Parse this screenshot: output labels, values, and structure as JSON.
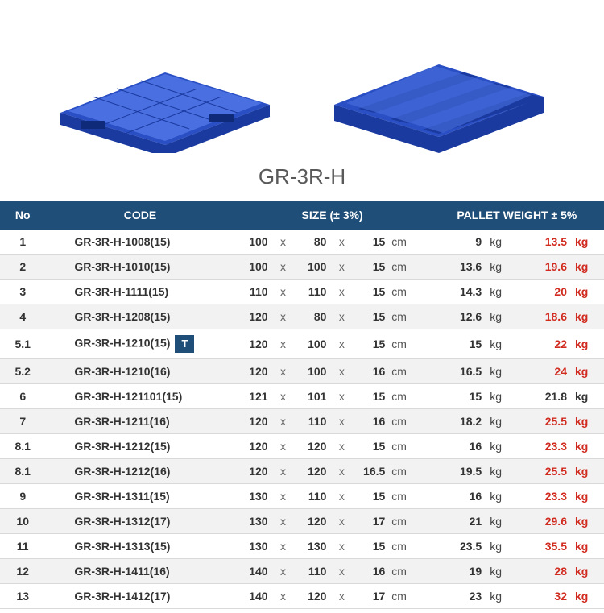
{
  "model_label": "GR-3R-H",
  "colors": {
    "header_bg": "#1f4e79",
    "header_text": "#ffffff",
    "row_alt_bg": "#f2f2f2",
    "text": "#333333",
    "red": "#d12a1f",
    "pallet_blue": "#2a4fc4",
    "pallet_blue_dark": "#1a3aa0",
    "pallet_blue_light": "#4a6fe0"
  },
  "headers": {
    "no": "No",
    "code": "CODE",
    "size": "SIZE  (± 3%)",
    "weight": "PALLET WEIGHT ± 5%"
  },
  "size_separator": "x",
  "size_unit": "cm",
  "weight_unit": "kg",
  "rows": [
    {
      "no": "1",
      "code": "GR-3R-H-1008(15)",
      "badge": "",
      "d1": "100",
      "d2": "80",
      "d3": "15",
      "w1": "9",
      "w2": "13.5",
      "w2_red": true
    },
    {
      "no": "2",
      "code": "GR-3R-H-1010(15)",
      "badge": "",
      "d1": "100",
      "d2": "100",
      "d3": "15",
      "w1": "13.6",
      "w2": "19.6",
      "w2_red": true
    },
    {
      "no": "3",
      "code": "GR-3R-H-1111(15)",
      "badge": "",
      "d1": "110",
      "d2": "110",
      "d3": "15",
      "w1": "14.3",
      "w2": "20",
      "w2_red": true
    },
    {
      "no": "4",
      "code": "GR-3R-H-1208(15)",
      "badge": "",
      "d1": "120",
      "d2": "80",
      "d3": "15",
      "w1": "12.6",
      "w2": "18.6",
      "w2_red": true
    },
    {
      "no": "5.1",
      "code": "GR-3R-H-1210(15)",
      "badge": "T",
      "d1": "120",
      "d2": "100",
      "d3": "15",
      "w1": "15",
      "w2": "22",
      "w2_red": true
    },
    {
      "no": "5.2",
      "code": "GR-3R-H-1210(16)",
      "badge": "",
      "d1": "120",
      "d2": "100",
      "d3": "16",
      "w1": "16.5",
      "w2": "24",
      "w2_red": true
    },
    {
      "no": "6",
      "code": "GR-3R-H-121101(15)",
      "badge": "",
      "d1": "121",
      "d2": "101",
      "d3": "15",
      "w1": "15",
      "w2": "21.8",
      "w2_red": false
    },
    {
      "no": "7",
      "code": "GR-3R-H-1211(16)",
      "badge": "",
      "d1": "120",
      "d2": "110",
      "d3": "16",
      "w1": "18.2",
      "w2": "25.5",
      "w2_red": true
    },
    {
      "no": "8.1",
      "code": "GR-3R-H-1212(15)",
      "badge": "",
      "d1": "120",
      "d2": "120",
      "d3": "15",
      "w1": "16",
      "w2": "23.3",
      "w2_red": true
    },
    {
      "no": "8.1",
      "code": "GR-3R-H-1212(16)",
      "badge": "",
      "d1": "120",
      "d2": "120",
      "d3": "16.5",
      "w1": "19.5",
      "w2": "25.5",
      "w2_red": true
    },
    {
      "no": "9",
      "code": "GR-3R-H-1311(15)",
      "badge": "",
      "d1": "130",
      "d2": "110",
      "d3": "15",
      "w1": "16",
      "w2": "23.3",
      "w2_red": true
    },
    {
      "no": "10",
      "code": "GR-3R-H-1312(17)",
      "badge": "",
      "d1": "130",
      "d2": "120",
      "d3": "17",
      "w1": "21",
      "w2": "29.6",
      "w2_red": true
    },
    {
      "no": "11",
      "code": "GR-3R-H-1313(15)",
      "badge": "",
      "d1": "130",
      "d2": "130",
      "d3": "15",
      "w1": "23.5",
      "w2": "35.5",
      "w2_red": true
    },
    {
      "no": "12",
      "code": "GR-3R-H-1411(16)",
      "badge": "",
      "d1": "140",
      "d2": "110",
      "d3": "16",
      "w1": "19",
      "w2": "28",
      "w2_red": true
    },
    {
      "no": "13",
      "code": "GR-3R-H-1412(17)",
      "badge": "",
      "d1": "140",
      "d2": "120",
      "d3": "17",
      "w1": "23",
      "w2": "32",
      "w2_red": true
    }
  ]
}
